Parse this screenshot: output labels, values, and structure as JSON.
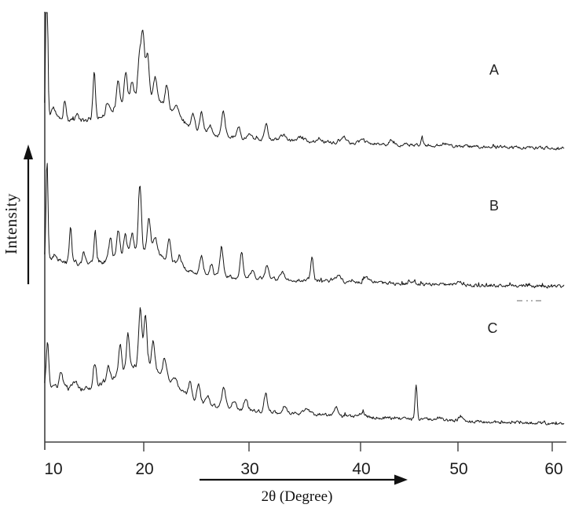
{
  "colors": {
    "background": "#ffffff",
    "trace": "#161616",
    "axis": "#404040",
    "artifact_gray": "#9a9a9a"
  },
  "chart_data": {
    "type": "line",
    "title": "",
    "xlabel": "2θ (Degree)",
    "ylabel": "Intensity",
    "x_ticks": [
      10,
      20,
      30,
      40,
      50,
      60
    ],
    "x_range": [
      9.9,
      61.3
    ],
    "grid": false,
    "legend_position": "inline-right",
    "y_axis_arrow": "up",
    "x_axis_arrow": "right",
    "series": [
      {
        "label": "A",
        "floor_y": 192,
        "bg_amp": 42,
        "bg_tau": 20,
        "hump": {
          "center": 20.0,
          "height": 45,
          "sigma": 2.7
        },
        "noise": 2.6,
        "seed": 11,
        "peaks": [
          [
            10.12,
            215,
            0.1
          ],
          [
            10.8,
            14,
            0.25
          ],
          [
            11.95,
            26,
            0.13
          ],
          [
            13.2,
            8,
            0.2
          ],
          [
            14.95,
            58,
            0.13
          ],
          [
            16.3,
            14,
            0.15
          ],
          [
            17.4,
            30,
            0.16
          ],
          [
            18.15,
            38,
            0.15
          ],
          [
            18.8,
            20,
            0.15
          ],
          [
            19.55,
            48,
            0.15
          ],
          [
            19.9,
            82,
            0.16
          ],
          [
            20.35,
            55,
            0.15
          ],
          [
            21.1,
            28,
            0.18
          ],
          [
            22.2,
            30,
            0.16
          ],
          [
            23.1,
            12,
            0.2
          ],
          [
            24.7,
            17,
            0.16
          ],
          [
            25.5,
            23,
            0.15
          ],
          [
            26.3,
            10,
            0.15
          ],
          [
            27.55,
            32,
            0.17
          ],
          [
            29.0,
            15,
            0.15
          ],
          [
            30.1,
            6,
            0.2
          ],
          [
            31.55,
            21,
            0.14
          ],
          [
            33.0,
            7,
            0.25
          ],
          [
            34.6,
            5,
            0.3
          ],
          [
            36.3,
            6,
            0.2
          ],
          [
            38.5,
            7,
            0.25
          ],
          [
            40.2,
            4,
            0.3
          ],
          [
            43.2,
            5,
            0.2
          ],
          [
            46.3,
            10,
            0.12
          ],
          [
            48.6,
            4,
            0.3
          ]
        ]
      },
      {
        "label": "B",
        "floor_y": 368,
        "bg_amp": 38,
        "bg_tau": 20,
        "hump": {
          "center": 19.9,
          "height": 27,
          "sigma": 2.4
        },
        "noise": 2.8,
        "seed": 22,
        "peaks": [
          [
            10.15,
            125,
            0.1
          ],
          [
            11.0,
            8,
            0.25
          ],
          [
            12.55,
            48,
            0.12
          ],
          [
            13.9,
            15,
            0.15
          ],
          [
            15.05,
            40,
            0.13
          ],
          [
            16.6,
            28,
            0.14
          ],
          [
            17.4,
            34,
            0.15
          ],
          [
            18.1,
            26,
            0.15
          ],
          [
            18.8,
            22,
            0.15
          ],
          [
            19.6,
            84,
            0.15
          ],
          [
            20.5,
            42,
            0.15
          ],
          [
            21.1,
            20,
            0.17
          ],
          [
            22.4,
            30,
            0.15
          ],
          [
            23.4,
            15,
            0.18
          ],
          [
            25.5,
            24,
            0.15
          ],
          [
            26.4,
            14,
            0.15
          ],
          [
            27.4,
            38,
            0.15
          ],
          [
            29.3,
            32,
            0.14
          ],
          [
            30.3,
            8,
            0.2
          ],
          [
            31.6,
            17,
            0.15
          ],
          [
            33.0,
            8,
            0.22
          ],
          [
            35.65,
            28,
            0.12
          ],
          [
            38.0,
            7,
            0.25
          ],
          [
            40.6,
            5,
            0.3
          ],
          [
            45.2,
            4,
            0.3
          ],
          [
            50.2,
            3,
            0.3
          ]
        ]
      },
      {
        "label": "C",
        "floor_y": 545,
        "bg_amp": 55,
        "bg_tau": 22,
        "hump": {
          "center": 19.9,
          "height": 44,
          "sigma": 2.7
        },
        "noise": 2.6,
        "seed": 33,
        "peaks": [
          [
            10.2,
            52,
            0.12
          ],
          [
            11.6,
            19,
            0.16
          ],
          [
            13.0,
            10,
            0.2
          ],
          [
            15.0,
            30,
            0.14
          ],
          [
            16.4,
            19,
            0.15
          ],
          [
            17.6,
            38,
            0.15
          ],
          [
            18.4,
            44,
            0.15
          ],
          [
            19.65,
            72,
            0.16
          ],
          [
            20.15,
            64,
            0.15
          ],
          [
            20.9,
            36,
            0.16
          ],
          [
            22.0,
            25,
            0.16
          ],
          [
            23.0,
            10,
            0.2
          ],
          [
            24.4,
            19,
            0.15
          ],
          [
            25.2,
            23,
            0.15
          ],
          [
            26.1,
            12,
            0.16
          ],
          [
            27.6,
            28,
            0.17
          ],
          [
            28.6,
            11,
            0.18
          ],
          [
            29.7,
            16,
            0.15
          ],
          [
            31.5,
            23,
            0.14
          ],
          [
            33.2,
            9,
            0.2
          ],
          [
            35.2,
            7,
            0.25
          ],
          [
            37.8,
            10,
            0.2
          ],
          [
            40.2,
            6,
            0.25
          ],
          [
            45.7,
            44,
            0.11
          ],
          [
            48.0,
            4,
            0.3
          ],
          [
            50.3,
            6,
            0.2
          ]
        ]
      }
    ]
  }
}
